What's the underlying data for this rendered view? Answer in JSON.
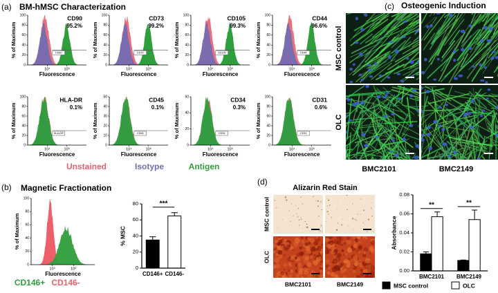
{
  "figure": {
    "a": {
      "label": "(a)",
      "title": "BM-hMSC Characterization",
      "legend": [
        {
          "name": "Unstained",
          "color": "#e8606e"
        },
        {
          "name": "Isotype",
          "color": "#6f6cb5"
        },
        {
          "name": "Antigen",
          "color": "#2f9e3c"
        }
      ]
    },
    "b": {
      "label": "(b)",
      "title": "Magnetic Fractionation",
      "legend": [
        {
          "name": "CD146+",
          "color": "#2f9e3c"
        },
        {
          "name": "CD146-",
          "color": "#ee5f6c"
        }
      ]
    },
    "c": {
      "label": "(c)",
      "title": "Osteogenic Induction",
      "rows": [
        "MSC control",
        "OLC"
      ],
      "columns": [
        "BMC2101",
        "BMC2149"
      ]
    },
    "d": {
      "label": "(d)",
      "title": "Alizarin Red Stain",
      "rows": [
        "MSC control",
        "OLC"
      ],
      "columns": [
        "BMC2101",
        "BMC2149"
      ]
    }
  },
  "chart_data": [
    {
      "type": "flow",
      "title": "CD90",
      "values": [
        95.2
      ],
      "value_labels": [
        "95.2%"
      ],
      "gate_label": "CD90",
      "ylabel": "% of Maximum",
      "xlabel": "Fluorescence",
      "xlim": [
        100,
        100000000
      ],
      "log_x": true,
      "xticks": [
        {
          "value": 10000,
          "label": "10⁴"
        },
        {
          "value": 1000000,
          "label": "10⁶"
        }
      ],
      "ylim": [
        0,
        100
      ],
      "yticks": [
        0,
        20,
        40,
        60,
        80,
        100
      ]
    },
    {
      "type": "flow",
      "title": "CD73",
      "values": [
        99.2
      ],
      "value_labels": [
        "99.2%"
      ],
      "gate_label": "CD73",
      "ylabel": "% of Maximum",
      "xlabel": "Fluorescence",
      "xlim": [
        100,
        100000000
      ],
      "log_x": true,
      "xticks": [
        {
          "value": 10000,
          "label": "10⁴"
        },
        {
          "value": 1000000,
          "label": "10⁶"
        }
      ],
      "ylim": [
        0,
        100
      ],
      "yticks": [
        0,
        20,
        40,
        60,
        80,
        100
      ]
    },
    {
      "type": "flow",
      "title": "CD105",
      "values": [
        99.3
      ],
      "value_labels": [
        "99.3%"
      ],
      "gate_label": "CD105",
      "ylabel": "% of Maximum",
      "xlabel": "Fluorescence",
      "xlim": [
        100,
        100000000
      ],
      "log_x": true,
      "xticks": [
        {
          "value": 10000,
          "label": "10⁴"
        },
        {
          "value": 1000000,
          "label": "10⁶"
        }
      ],
      "ylim": [
        0,
        100
      ],
      "yticks": [
        0,
        20,
        40,
        60,
        80,
        100
      ]
    },
    {
      "type": "flow",
      "title": "CD44",
      "values": [
        96.6
      ],
      "value_labels": [
        "96.6%"
      ],
      "gate_label": "CD44",
      "ylabel": "% of Maximum",
      "xlabel": "Fluorescence",
      "xlim": [
        100,
        100000000
      ],
      "log_x": true,
      "xticks": [
        {
          "value": 10000,
          "label": "10⁴"
        },
        {
          "value": 1000000,
          "label": "10⁶"
        }
      ],
      "ylim": [
        0,
        100
      ],
      "yticks": [
        0,
        20,
        40,
        60,
        80,
        100
      ]
    },
    {
      "type": "flow",
      "title": "HLA-DR",
      "values": [
        0.1
      ],
      "value_labels": [
        "0.1%"
      ],
      "gate_label": "HLA-DR",
      "ylabel": "% of Maximum",
      "xlabel": "Fluorescence",
      "xlim": [
        100,
        100000000
      ],
      "log_x": true,
      "xticks": [
        {
          "value": 10000,
          "label": "10⁴"
        },
        {
          "value": 1000000,
          "label": "10⁶"
        }
      ],
      "ylim": [
        0,
        100
      ],
      "yticks": [
        0,
        20,
        40,
        60,
        80,
        100
      ]
    },
    {
      "type": "flow",
      "title": "CD45",
      "values": [
        0.1
      ],
      "value_labels": [
        "0.1%"
      ],
      "gate_label": "CD45",
      "ylabel": "% of Maximum",
      "xlabel": "Fluorescence",
      "xlim": [
        100,
        100000000
      ],
      "log_x": true,
      "xticks": [
        {
          "value": 10000,
          "label": "10⁴"
        },
        {
          "value": 1000000,
          "label": "10⁶"
        }
      ],
      "ylim": [
        0,
        50
      ],
      "yticks": [
        0,
        10,
        20,
        30,
        40,
        50
      ]
    },
    {
      "type": "flow",
      "title": "CD34",
      "values": [
        0.3
      ],
      "value_labels": [
        "0.3%"
      ],
      "gate_label": "CD34",
      "ylabel": "% of Maximum",
      "xlabel": "Fluorescence",
      "xlim": [
        100,
        100000000
      ],
      "log_x": true,
      "xticks": [
        {
          "value": 10000,
          "label": "10⁴"
        },
        {
          "value": 1000000,
          "label": "10⁶"
        }
      ],
      "ylim": [
        0,
        60
      ],
      "yticks": [
        0,
        20,
        40,
        60
      ]
    },
    {
      "type": "flow",
      "title": "CD31",
      "values": [
        0.6
      ],
      "value_labels": [
        "0.6%"
      ],
      "gate_label": "CD31",
      "ylabel": "% of Maximum",
      "xlabel": "Fluorescence",
      "xlim": [
        100,
        100000000
      ],
      "log_x": true,
      "xticks": [
        {
          "value": 10000,
          "label": "10⁴"
        },
        {
          "value": 1000000,
          "label": "10⁶"
        }
      ],
      "ylim": [
        0,
        100
      ],
      "yticks": [
        0,
        20,
        40,
        60,
        80,
        100
      ]
    },
    {
      "type": "flow",
      "ylabel": "% of Maximum",
      "xlabel": "Fluorescence",
      "xlim": [
        100,
        100000000
      ],
      "log_x": true,
      "xticks": [
        {
          "value": 10000,
          "label": "10⁴"
        },
        {
          "value": 1000000,
          "label": "10⁶"
        }
      ],
      "ylim": [
        0,
        100
      ],
      "yticks": [
        0,
        20,
        40,
        60,
        80,
        100
      ]
    },
    {
      "type": "bar",
      "ylabel": "% MSC",
      "categories": [
        "CD146+",
        "CD146-"
      ],
      "values": [
        35,
        65
      ],
      "errors": [
        4,
        4
      ],
      "colors": [
        "#000000",
        "#ffffff"
      ],
      "ylim": [
        0,
        80
      ],
      "yticks": [
        0,
        20,
        40,
        60,
        80
      ],
      "annotations": [
        "***"
      ]
    },
    {
      "type": "bar",
      "ylabel": "Absorbance",
      "categories": [
        "BMC2101",
        "BMC2149"
      ],
      "series": [
        {
          "name": "MSC control",
          "color": "#000000",
          "values": [
            0.018,
            0.011
          ],
          "errors": [
            0.002,
            0.0005
          ]
        },
        {
          "name": "OLC",
          "color": "#ffffff",
          "values": [
            0.057,
            0.054
          ],
          "errors": [
            0.005,
            0.01
          ]
        }
      ],
      "ylim": [
        0,
        0.08
      ],
      "yticks": [
        {
          "value": 0,
          "label": "0.00"
        },
        {
          "value": 0.02,
          "label": "0.02"
        },
        {
          "value": 0.04,
          "label": "0.04"
        },
        {
          "value": 0.06,
          "label": "0.06"
        },
        {
          "value": 0.08,
          "label": "0.08"
        }
      ],
      "annotations": [
        "**",
        "**"
      ]
    }
  ]
}
